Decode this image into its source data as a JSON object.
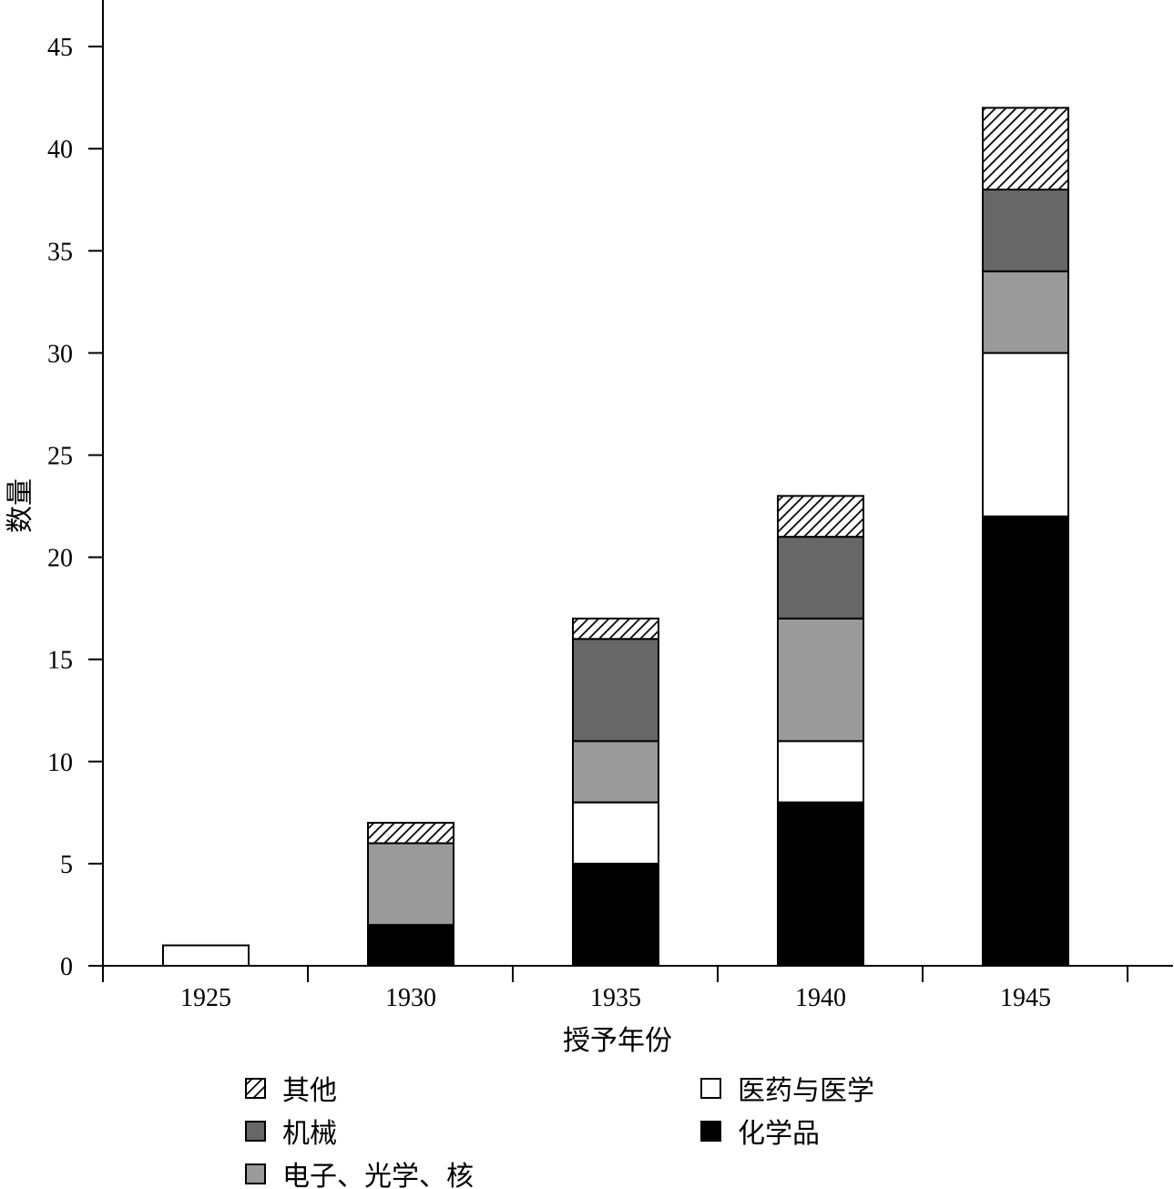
{
  "chart_data": {
    "type": "bar",
    "stacked": true,
    "categories": [
      "1925",
      "1930",
      "1935",
      "1940",
      "1945"
    ],
    "series": [
      {
        "name": "化学品",
        "values": [
          0,
          2,
          5,
          8,
          22
        ],
        "fill": "solid",
        "color": "#000000"
      },
      {
        "name": "医药与医学",
        "values": [
          1,
          0,
          3,
          3,
          8
        ],
        "fill": "solid",
        "color": "#ffffff"
      },
      {
        "name": "电子、光学、核",
        "values": [
          0,
          4,
          3,
          6,
          4
        ],
        "fill": "solid",
        "color": "#9a9a9a"
      },
      {
        "name": "机械",
        "values": [
          0,
          0,
          5,
          4,
          4
        ],
        "fill": "solid",
        "color": "#676767"
      },
      {
        "name": "其他",
        "values": [
          0,
          1,
          1,
          2,
          4
        ],
        "fill": "hatch",
        "color": "#000000"
      }
    ],
    "xlabel": "授予年份",
    "ylabel": "数量",
    "ylim": [
      0,
      47
    ],
    "yticks": [
      0,
      5,
      10,
      15,
      20,
      25,
      30,
      35,
      40,
      45
    ],
    "grid": false,
    "legend_position": "bottom",
    "legend": {
      "columns": [
        [
          "其他",
          "机械",
          "电子、光学、核"
        ],
        [
          "医药与医学",
          "化学品"
        ]
      ]
    }
  }
}
